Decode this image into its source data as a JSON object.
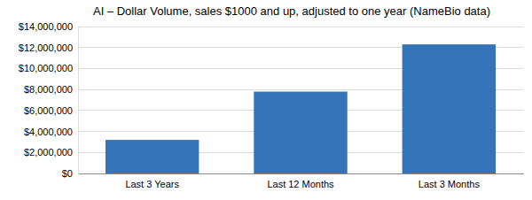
{
  "chart_data": {
    "type": "bar",
    "title": "AI – Dollar Volume, sales $1000 and up, adjusted to one year (NameBio data)",
    "categories": [
      "Last 3 Years",
      "Last 12 Months",
      "Last 3 Months"
    ],
    "values": [
      3200000,
      7800000,
      12300000
    ],
    "color": "#3674b9",
    "ylim": [
      0,
      14000000
    ],
    "yticks": [
      {
        "value": 0,
        "label": "$0"
      },
      {
        "value": 2000000,
        "label": "$2,000,000"
      },
      {
        "value": 4000000,
        "label": "$4,000,000"
      },
      {
        "value": 6000000,
        "label": "$6,000,000"
      },
      {
        "value": 8000000,
        "label": "$8,000,000"
      },
      {
        "value": 10000000,
        "label": "$10,000,000"
      },
      {
        "value": 12000000,
        "label": "$12,000,000"
      },
      {
        "value": 14000000,
        "label": "$14,000,000"
      }
    ],
    "grid": true
  }
}
